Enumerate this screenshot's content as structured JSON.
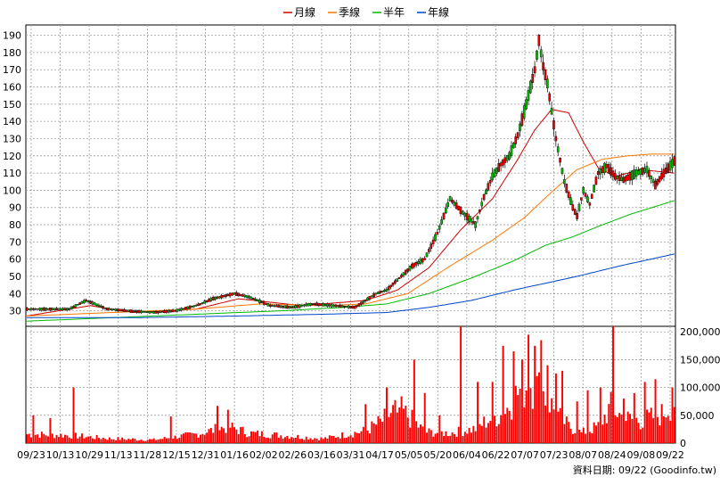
{
  "chart_data": {
    "type": "candlestick",
    "legend": [
      {
        "name": "月線",
        "color": "#cc0000"
      },
      {
        "name": "季線",
        "color": "#ff7700"
      },
      {
        "name": "半年",
        "color": "#00bb00"
      },
      {
        "name": "年線",
        "color": "#0044cc"
      }
    ],
    "price_axis": {
      "ylim": [
        21,
        196
      ],
      "ticks": [
        30,
        40,
        50,
        60,
        70,
        80,
        90,
        100,
        110,
        120,
        130,
        140,
        150,
        160,
        170,
        180,
        190
      ]
    },
    "volume_axis": {
      "ylim": [
        0,
        210000
      ],
      "ticks": [
        0,
        50000,
        100000,
        150000,
        200000
      ],
      "tick_labels": [
        "0",
        "50,000",
        "100,000",
        "150,000",
        "200,000"
      ]
    },
    "x_labels": [
      "09/23",
      "10/13",
      "10/29",
      "11/13",
      "11/28",
      "12/15",
      "12/31",
      "01/16",
      "02/02",
      "02/26",
      "03/16",
      "03/31",
      "04/17",
      "05/05",
      "05/20",
      "06/04",
      "06/22",
      "07/07",
      "07/23",
      "08/07",
      "08/24",
      "09/08",
      "09/22"
    ],
    "price_anchors": [
      [
        0,
        31
      ],
      [
        10,
        31
      ],
      [
        20,
        31
      ],
      [
        28,
        36
      ],
      [
        38,
        31
      ],
      [
        48,
        30
      ],
      [
        60,
        29
      ],
      [
        70,
        30
      ],
      [
        80,
        33
      ],
      [
        88,
        37
      ],
      [
        98,
        40
      ],
      [
        105,
        38
      ],
      [
        115,
        33
      ],
      [
        125,
        32
      ],
      [
        135,
        34
      ],
      [
        145,
        33
      ],
      [
        155,
        32
      ],
      [
        165,
        40
      ],
      [
        170,
        42
      ],
      [
        176,
        49
      ],
      [
        182,
        56
      ],
      [
        188,
        60
      ],
      [
        194,
        75
      ],
      [
        200,
        95
      ],
      [
        206,
        87
      ],
      [
        212,
        80
      ],
      [
        216,
        96
      ],
      [
        220,
        108
      ],
      [
        224,
        115
      ],
      [
        228,
        120
      ],
      [
        232,
        132
      ],
      [
        236,
        150
      ],
      [
        238,
        160
      ],
      [
        240,
        170
      ],
      [
        242,
        187
      ],
      [
        244,
        172
      ],
      [
        246,
        162
      ],
      [
        250,
        130
      ],
      [
        254,
        105
      ],
      [
        258,
        90
      ],
      [
        260,
        85
      ],
      [
        263,
        100
      ],
      [
        266,
        92
      ],
      [
        270,
        110
      ],
      [
        274,
        114
      ],
      [
        278,
        108
      ],
      [
        282,
        106
      ],
      [
        288,
        110
      ],
      [
        293,
        112
      ],
      [
        297,
        103
      ],
      [
        301,
        110
      ],
      [
        306,
        117
      ]
    ],
    "ma_month": [
      [
        0,
        27
      ],
      [
        30,
        33
      ],
      [
        50,
        29
      ],
      [
        80,
        31
      ],
      [
        100,
        37
      ],
      [
        130,
        33
      ],
      [
        160,
        36
      ],
      [
        175,
        42
      ],
      [
        190,
        55
      ],
      [
        205,
        77
      ],
      [
        220,
        95
      ],
      [
        232,
        118
      ],
      [
        240,
        135
      ],
      [
        248,
        147
      ],
      [
        256,
        145
      ],
      [
        263,
        128
      ],
      [
        270,
        113
      ],
      [
        278,
        108
      ],
      [
        290,
        112
      ],
      [
        306,
        110
      ]
    ],
    "ma_quarter": [
      [
        0,
        27
      ],
      [
        40,
        29
      ],
      [
        80,
        31
      ],
      [
        110,
        34
      ],
      [
        140,
        33
      ],
      [
        160,
        34
      ],
      [
        180,
        40
      ],
      [
        200,
        56
      ],
      [
        220,
        71
      ],
      [
        235,
        84
      ],
      [
        248,
        99
      ],
      [
        260,
        112
      ],
      [
        272,
        118
      ],
      [
        284,
        120
      ],
      [
        295,
        121
      ],
      [
        306,
        121
      ]
    ],
    "ma_half": [
      [
        0,
        24
      ],
      [
        40,
        26
      ],
      [
        80,
        28
      ],
      [
        120,
        30
      ],
      [
        150,
        32
      ],
      [
        170,
        34
      ],
      [
        190,
        40
      ],
      [
        210,
        49
      ],
      [
        230,
        59
      ],
      [
        245,
        68
      ],
      [
        258,
        73
      ],
      [
        270,
        79
      ],
      [
        285,
        86
      ],
      [
        306,
        94
      ]
    ],
    "ma_year": [
      [
        0,
        26
      ],
      [
        50,
        26
      ],
      [
        100,
        27
      ],
      [
        140,
        28
      ],
      [
        170,
        29
      ],
      [
        190,
        32
      ],
      [
        210,
        36
      ],
      [
        230,
        42
      ],
      [
        245,
        46
      ],
      [
        260,
        50
      ],
      [
        280,
        56
      ],
      [
        306,
        63
      ]
    ],
    "volume_anchors": [
      [
        0,
        16000
      ],
      [
        20,
        14000
      ],
      [
        40,
        8000
      ],
      [
        60,
        6000
      ],
      [
        80,
        16000
      ],
      [
        95,
        30000
      ],
      [
        105,
        18000
      ],
      [
        120,
        14000
      ],
      [
        140,
        8000
      ],
      [
        160,
        22000
      ],
      [
        168,
        40000
      ],
      [
        175,
        65000
      ],
      [
        182,
        42000
      ],
      [
        188,
        20000
      ],
      [
        200,
        18000
      ],
      [
        212,
        26000
      ],
      [
        218,
        42000
      ],
      [
        225,
        52000
      ],
      [
        232,
        90000
      ],
      [
        238,
        110000
      ],
      [
        244,
        90000
      ],
      [
        250,
        55000
      ],
      [
        256,
        30000
      ],
      [
        262,
        18000
      ],
      [
        270,
        30000
      ],
      [
        276,
        65000
      ],
      [
        282,
        45000
      ],
      [
        290,
        40000
      ],
      [
        300,
        52000
      ],
      [
        306,
        75000
      ]
    ],
    "volume_spikes": [
      [
        3,
        50000
      ],
      [
        11,
        45000
      ],
      [
        22,
        100000
      ],
      [
        68,
        48000
      ],
      [
        90,
        67000
      ],
      [
        95,
        60000
      ],
      [
        160,
        70000
      ],
      [
        170,
        100000
      ],
      [
        175,
        55000
      ],
      [
        183,
        150000
      ],
      [
        188,
        90000
      ],
      [
        195,
        50000
      ],
      [
        205,
        210000
      ],
      [
        213,
        110000
      ],
      [
        220,
        110000
      ],
      [
        225,
        175000
      ],
      [
        230,
        165000
      ],
      [
        234,
        150000
      ],
      [
        237,
        195000
      ],
      [
        240,
        175000
      ],
      [
        243,
        185000
      ],
      [
        246,
        140000
      ],
      [
        250,
        125000
      ],
      [
        253,
        130000
      ],
      [
        260,
        75000
      ],
      [
        265,
        95000
      ],
      [
        271,
        100000
      ],
      [
        277,
        210000
      ],
      [
        282,
        80000
      ],
      [
        287,
        90000
      ],
      [
        292,
        110000
      ],
      [
        297,
        115000
      ],
      [
        305,
        100000
      ]
    ],
    "footer_text": "資料日期: 09/22 (Goodinfo.tw)"
  }
}
